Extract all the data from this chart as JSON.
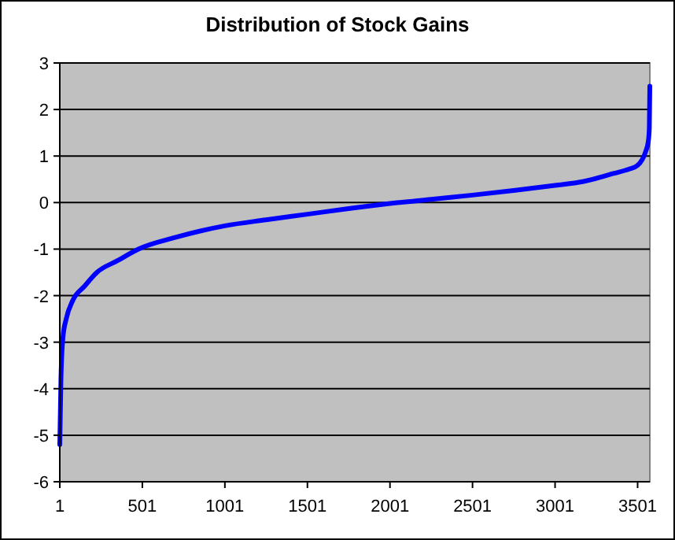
{
  "chart_data": {
    "type": "line",
    "title": "Distribution of Stock Gains",
    "x": [
      1,
      8,
      20,
      40,
      80,
      150,
      226,
      350,
      477,
      700,
      1001,
      1250,
      1501,
      1750,
      2001,
      2250,
      2500,
      2750,
      3001,
      3168,
      3359,
      3450,
      3501,
      3550,
      3565,
      3572,
      3575
    ],
    "series": [
      {
        "color": "#0000ff",
        "values": [
          -5.2,
          -3.8,
          -2.9,
          -2.5,
          -2.1,
          -1.8,
          -1.5,
          -1.25,
          -1.0,
          -0.75,
          -0.5,
          -0.37,
          -0.25,
          -0.13,
          -0.02,
          0.07,
          0.16,
          0.26,
          0.37,
          0.45,
          0.63,
          0.72,
          0.8,
          1.1,
          1.3,
          1.6,
          2.5
        ]
      }
    ],
    "xlim": [
      1,
      3575
    ],
    "xticks": [
      1,
      501,
      1001,
      1501,
      2001,
      2501,
      3001,
      3501
    ],
    "ylim": [
      -6,
      3
    ],
    "yticks": [
      -6,
      -5,
      -4,
      -3,
      -2,
      -1,
      0,
      1,
      2,
      3
    ],
    "grid": "y",
    "marker": "none",
    "line_style": "solid"
  }
}
